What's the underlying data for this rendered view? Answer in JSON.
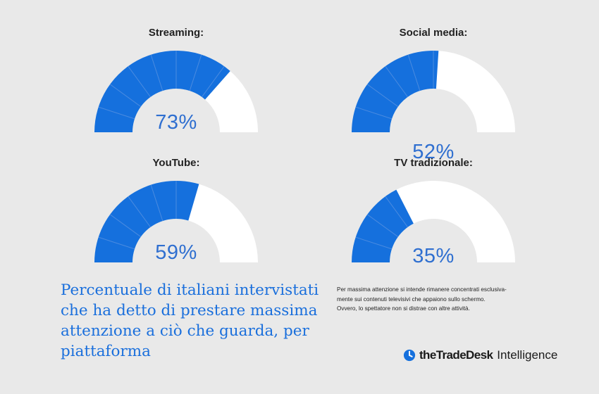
{
  "chart_data": {
    "type": "gauge",
    "gauges": [
      {
        "title": "Streaming:",
        "value": 73,
        "label": "73%"
      },
      {
        "title": "Social media:",
        "value": 52,
        "label": "52%"
      },
      {
        "title": "YouTube:",
        "value": 59,
        "label": "59%"
      },
      {
        "title": "TV tradizionale:",
        "value": 35,
        "label": "35%"
      }
    ],
    "range": [
      0,
      100
    ],
    "fill_color": "#1570dd",
    "empty_color": "#ffffff"
  },
  "caption": "Percentuale di italiani intervistati che ha detto di prestare massima attenzione a ciò che guarda, per piattaforma",
  "footnote": {
    "lines": [
      "Per massima attenzione si intende rimanere concentrati esclusiva-",
      "mente sui contenuti televisivi che appaiono sullo schermo.",
      "Ovvero, lo spettatore non si distrae con altre attività."
    ]
  },
  "brand": {
    "icon": "clock-icon",
    "name": "theTradeDesk",
    "suffix": "Intelligence"
  }
}
